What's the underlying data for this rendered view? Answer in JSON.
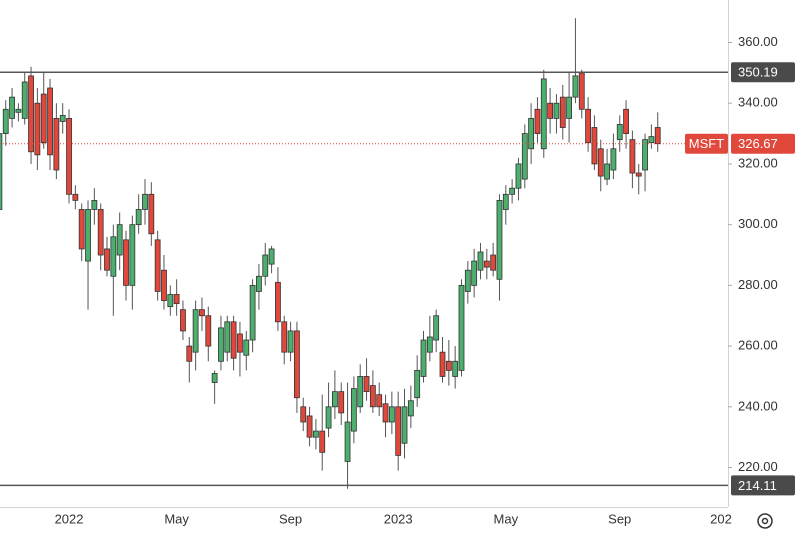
{
  "chart_data": {
    "type": "candlestick",
    "symbol": "MSFT",
    "categories": [
      null,
      null,
      null,
      null,
      null,
      null,
      null,
      null,
      null,
      null,
      null,
      "2022",
      null,
      null,
      null,
      null,
      null,
      null,
      null,
      null,
      null,
      null,
      null,
      null,
      null,
      null,
      null,
      null,
      "May",
      null,
      null,
      null,
      null,
      null,
      null,
      null,
      null,
      null,
      null,
      null,
      null,
      null,
      null,
      null,
      null,
      null,
      "Sep",
      null,
      null,
      null,
      null,
      null,
      null,
      null,
      null,
      null,
      null,
      null,
      null,
      null,
      null,
      null,
      null,
      "2023",
      null,
      null,
      null,
      null,
      null,
      null,
      null,
      null,
      null,
      null,
      null,
      null,
      null,
      null,
      null,
      null,
      "May",
      null,
      null,
      null,
      null,
      null,
      null,
      null,
      null,
      null,
      null,
      null,
      null,
      null,
      null,
      null,
      null,
      null,
      "Sep",
      null,
      null,
      null,
      null,
      null,
      null,
      null,
      null,
      null,
      null,
      null,
      null,
      null,
      null,
      null,
      "202"
    ],
    "open": [
      305,
      330,
      335,
      337,
      335,
      349,
      340,
      343,
      345,
      335,
      334,
      335,
      310,
      305,
      288,
      305,
      305,
      292,
      283,
      290,
      295,
      280,
      300,
      305,
      310,
      295,
      285,
      273,
      277,
      272,
      260,
      258,
      272,
      270,
      248,
      255,
      258,
      268,
      264,
      257,
      262,
      278,
      283,
      287,
      281,
      268,
      258,
      265,
      240,
      237,
      230,
      232,
      233,
      240,
      245,
      222,
      232,
      240,
      250,
      247,
      244,
      241,
      235,
      240,
      228,
      237,
      243,
      250,
      258,
      262,
      258,
      255,
      250,
      252,
      278,
      280,
      285,
      288,
      290,
      282,
      305,
      310,
      312,
      315,
      325,
      338,
      325,
      340,
      335,
      342,
      335,
      342,
      350,
      338,
      332,
      325,
      315,
      318,
      328,
      338,
      328,
      317,
      318,
      327,
      332,
      null,
      null,
      null,
      null,
      null,
      null,
      null,
      null,
      null,
      null
    ],
    "high": [
      333,
      341,
      345,
      340,
      350,
      352,
      345,
      350,
      348,
      340,
      340,
      338,
      313,
      307,
      308,
      312,
      307,
      296,
      300,
      304,
      298,
      303,
      310,
      315,
      314,
      298,
      290,
      280,
      282,
      275,
      263,
      275,
      276,
      273,
      252,
      270,
      270,
      270,
      268,
      265,
      282,
      287,
      294,
      293,
      286,
      270,
      268,
      268,
      243,
      240,
      236,
      244,
      248,
      252,
      248,
      248,
      250,
      254,
      256,
      252,
      248,
      244,
      245,
      245,
      246,
      247,
      257,
      265,
      270,
      272,
      263,
      262,
      260,
      282,
      288,
      292,
      294,
      292,
      294,
      310,
      313,
      315,
      322,
      333,
      340,
      342,
      351,
      345,
      343,
      346,
      350,
      368,
      351,
      342,
      336,
      328,
      325,
      330,
      336,
      341,
      331,
      320,
      330,
      333,
      337,
      null,
      null,
      null,
      null,
      null,
      null,
      null,
      null,
      null,
      null
    ],
    "low": [
      300,
      326,
      332,
      334,
      333,
      320,
      318,
      325,
      318,
      315,
      330,
      307,
      305,
      288,
      272,
      300,
      285,
      283,
      270,
      285,
      275,
      272,
      297,
      300,
      293,
      275,
      272,
      270,
      270,
      262,
      248,
      252,
      265,
      255,
      241,
      252,
      255,
      252,
      250,
      252,
      258,
      272,
      280,
      284,
      265,
      254,
      255,
      238,
      232,
      227,
      226,
      219,
      230,
      236,
      234,
      213,
      228,
      238,
      242,
      238,
      237,
      230,
      231,
      219,
      223,
      233,
      240,
      248,
      255,
      258,
      248,
      247,
      246,
      250,
      274,
      276,
      282,
      282,
      283,
      275,
      300,
      307,
      308,
      312,
      320,
      327,
      322,
      330,
      330,
      328,
      327,
      340,
      335,
      324,
      318,
      311,
      313,
      315,
      324,
      325,
      312,
      310,
      311,
      325,
      324,
      null,
      null,
      null,
      null,
      null,
      null,
      null,
      null,
      null,
      null
    ],
    "close": [
      330,
      338,
      342,
      338,
      347,
      324,
      323,
      327,
      323,
      318,
      336,
      310,
      308,
      292,
      305,
      308,
      290,
      285,
      296,
      300,
      280,
      300,
      305,
      310,
      297,
      278,
      275,
      277,
      274,
      265,
      255,
      272,
      270,
      260,
      251,
      266,
      268,
      256,
      258,
      262,
      280,
      283,
      290,
      292,
      268,
      258,
      265,
      243,
      235,
      230,
      232,
      225,
      240,
      245,
      238,
      235,
      246,
      250,
      245,
      240,
      240,
      235,
      240,
      224,
      240,
      242,
      252,
      262,
      263,
      270,
      250,
      252,
      255,
      280,
      285,
      288,
      291,
      286,
      285,
      308,
      310,
      312,
      320,
      330,
      335,
      330,
      348,
      335,
      340,
      332,
      342,
      349,
      338,
      327,
      320,
      316,
      320,
      325,
      333,
      330,
      317,
      316,
      328,
      329,
      326.67,
      null,
      null,
      null,
      null,
      null,
      null,
      null,
      null,
      null,
      null
    ],
    "up_color": "#4caf6e",
    "down_color": "#e0483c",
    "ylim": [
      207,
      374
    ],
    "yticks": [
      {
        "value": 220,
        "label": "220.00"
      },
      {
        "value": 240,
        "label": "240.00"
      },
      {
        "value": 260,
        "label": "260.00"
      },
      {
        "value": 280,
        "label": "280.00"
      },
      {
        "value": 300,
        "label": "300.00"
      },
      {
        "value": 320,
        "label": "320.00"
      },
      {
        "value": 340,
        "label": "340.00"
      },
      {
        "value": 360,
        "label": "360.00"
      }
    ],
    "levels": [
      350.19,
      214.11
    ],
    "last_price": 326.67
  }
}
